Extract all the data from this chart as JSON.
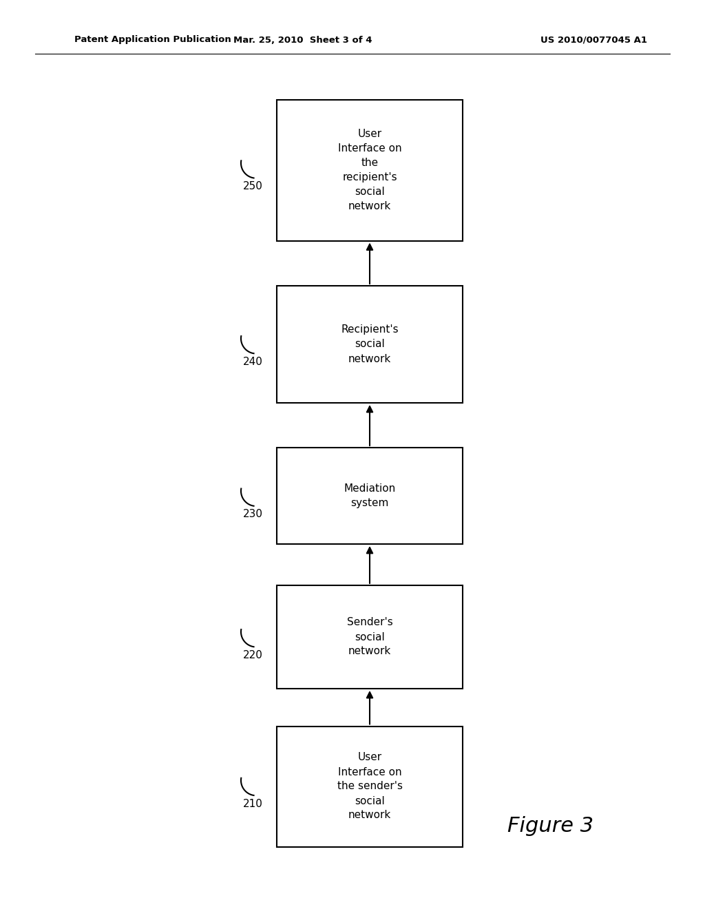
{
  "title_left": "Patent Application Publication",
  "title_center": "Mar. 25, 2010  Sheet 3 of 4",
  "title_right": "US 2010/0077045 A1",
  "figure_label": "Figure 3",
  "boxes": [
    {
      "label": "210",
      "text": "User\nInterface on\nthe sender's\nsocial\nnetwork"
    },
    {
      "label": "220",
      "text": "Sender's\nsocial\nnetwork"
    },
    {
      "label": "230",
      "text": "Mediation\nsystem"
    },
    {
      "label": "240",
      "text": "Recipient's\nsocial\nnetwork"
    },
    {
      "label": "250",
      "text": "User\nInterface on\nthe\nrecipient's\nsocial\nnetwork"
    }
  ],
  "background_color": "#ffffff",
  "box_edge_color": "#000000",
  "text_color": "#000000",
  "arrow_color": "#000000",
  "font_size_box": 11,
  "font_size_label": 11,
  "font_size_header": 9.5,
  "font_size_figure": 22
}
